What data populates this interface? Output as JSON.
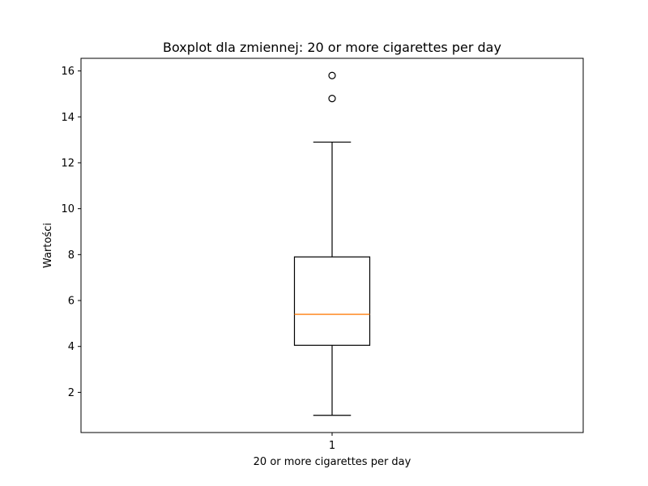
{
  "chart_data": {
    "type": "boxplot",
    "title": "Boxplot dla zmiennej: 20 or more cigarettes per day",
    "xlabel": "20 or more cigarettes per day",
    "ylabel": "Wartości",
    "categories": [
      "1"
    ],
    "ylim": [
      0.25,
      16.55
    ],
    "yticks": [
      2,
      4,
      6,
      8,
      10,
      12,
      14,
      16
    ],
    "grid": false,
    "boxes": [
      {
        "label": "1",
        "whisker_low": 1.0,
        "q1": 4.05,
        "median": 5.4,
        "q3": 7.9,
        "whisker_high": 12.9,
        "outliers": [
          14.8,
          15.8
        ]
      }
    ],
    "colors": {
      "box": "#000000",
      "median": "#ff7f0e",
      "outlier": "#000000"
    }
  }
}
